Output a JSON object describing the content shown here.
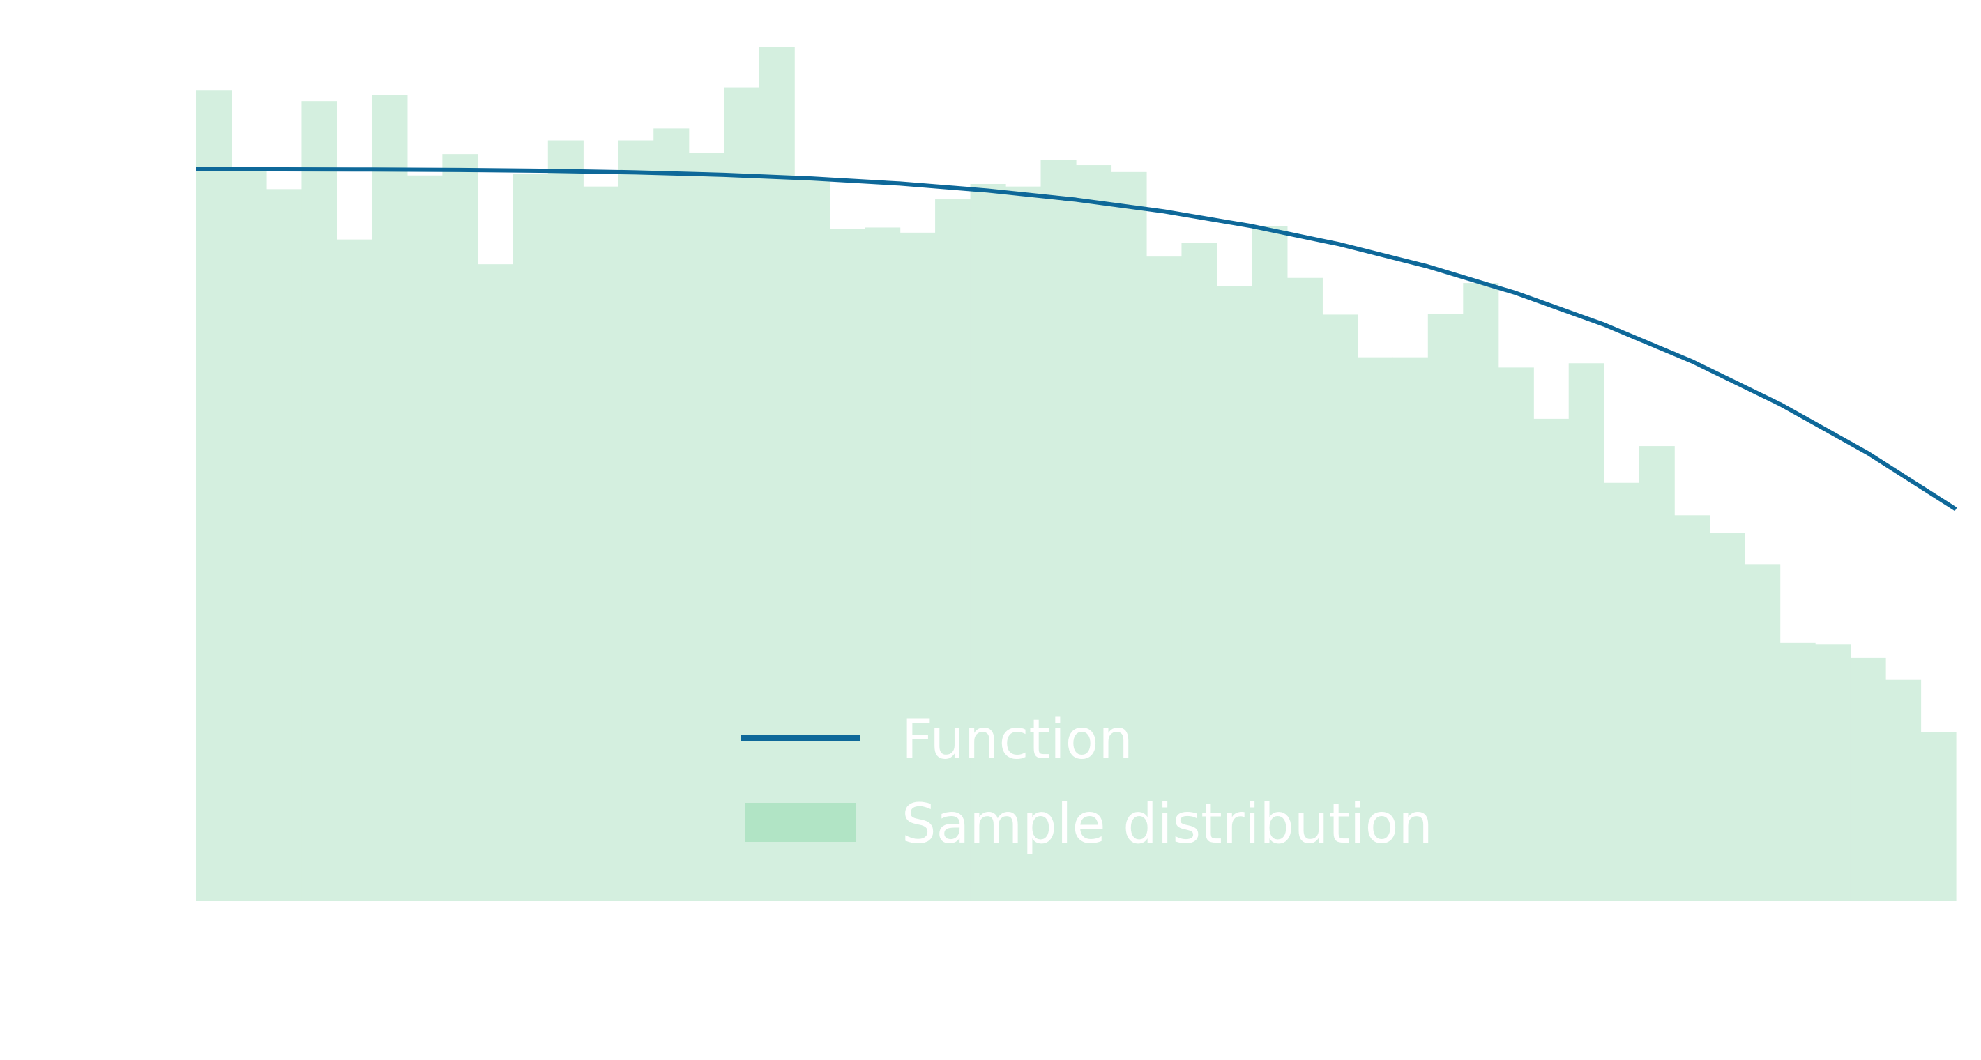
{
  "chart_data": {
    "type": "bar",
    "x": [
      0.0,
      0.02,
      0.04,
      0.06,
      0.08,
      0.1,
      0.12,
      0.14,
      0.16,
      0.18,
      0.2,
      0.22,
      0.24,
      0.26,
      0.28,
      0.3,
      0.32,
      0.34,
      0.36,
      0.38,
      0.4,
      0.42,
      0.44,
      0.46,
      0.48,
      0.5,
      0.52,
      0.54,
      0.56,
      0.58,
      0.6,
      0.62,
      0.64,
      0.66,
      0.68,
      0.7,
      0.72,
      0.74,
      0.76,
      0.78,
      0.8,
      0.82,
      0.84,
      0.86,
      0.88,
      0.9,
      0.92,
      0.94,
      0.96,
      0.98
    ],
    "values": [
      0.95,
      0.855,
      0.834,
      0.937,
      0.775,
      0.944,
      0.85,
      0.875,
      0.746,
      0.852,
      0.891,
      0.837,
      0.891,
      0.905,
      0.876,
      0.953,
      1.0,
      0.845,
      0.787,
      0.789,
      0.783,
      0.822,
      0.84,
      0.837,
      0.868,
      0.862,
      0.854,
      0.755,
      0.771,
      0.72,
      0.791,
      0.73,
      0.687,
      0.637,
      0.637,
      0.688,
      0.724,
      0.625,
      0.565,
      0.63,
      0.49,
      0.533,
      0.452,
      0.431,
      0.394,
      0.303,
      0.301,
      0.285,
      0.259,
      0.198
    ],
    "series": [
      {
        "name": "Function",
        "x": [
          0.0,
          0.05,
          0.1,
          0.15,
          0.2,
          0.25,
          0.3,
          0.35,
          0.4,
          0.45,
          0.5,
          0.55,
          0.6,
          0.65,
          0.7,
          0.75,
          0.8,
          0.85,
          0.9,
          0.95,
          1.0
        ],
        "y": [
          0.8571,
          0.8571,
          0.8569,
          0.8564,
          0.8554,
          0.8536,
          0.8507,
          0.8464,
          0.8405,
          0.8323,
          0.8216,
          0.8079,
          0.7906,
          0.7693,
          0.7434,
          0.7123,
          0.6754,
          0.6323,
          0.5822,
          0.5247,
          0.459
        ]
      },
      {
        "name": "Sample distribution",
        "values_ref": "values"
      }
    ],
    "xlim": [
      0,
      1
    ],
    "ylim": [
      0,
      1
    ],
    "grid": false,
    "legend_position": "bottom-center",
    "colors": {
      "line": "#0e6899",
      "bars": "#d4efdf",
      "legend_patch": "#b1e4c5",
      "legend_text": "#ffffff",
      "background": "#ffffff"
    }
  },
  "legend": {
    "function_label": "Function",
    "distribution_label": "Sample distribution"
  }
}
